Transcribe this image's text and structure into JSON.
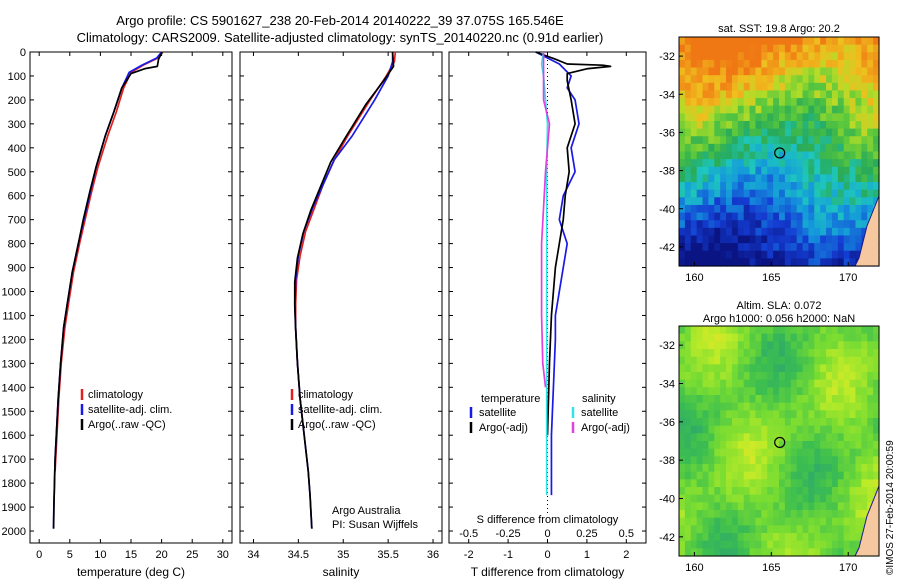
{
  "header": {
    "line1": "Argo profile: CS 5901627_238 20-Feb-2014 20140222_39 37.075S 165.546E",
    "line2": "Climatology: CARS2009. Satellite-adjusted climatology: synTS_20140220.nc (0.91d earlier)"
  },
  "colors": {
    "climatology": "#e32020",
    "satellite": "#1a1ae6",
    "argo": "#000000",
    "salinity_satellite": "#2ee6e6",
    "salinity_argo": "#e040e0"
  },
  "depth_axis": {
    "ylim": [
      0,
      2050
    ],
    "ticks": [
      0,
      100,
      200,
      300,
      400,
      500,
      600,
      700,
      800,
      900,
      1000,
      1100,
      1200,
      1300,
      1400,
      1500,
      1600,
      1700,
      1800,
      1900,
      2000
    ]
  },
  "chart_data": [
    {
      "id": "temperature",
      "type": "line",
      "xlabel": "temperature (deg C)",
      "xlim": [
        -1.5,
        31.5
      ],
      "ylim": [
        0,
        2050
      ],
      "xticks": [
        0,
        5,
        10,
        15,
        20,
        25,
        30
      ],
      "legend": [
        "climatology",
        "satellite-adj. clim.",
        "Argo(..raw -QC)"
      ],
      "legend_position": "lower-middle",
      "series": [
        {
          "name": "climatology",
          "color_key": "climatology",
          "x": [
            20.2,
            19.4,
            17.0,
            15.0,
            13.8,
            12.6,
            11.2,
            9.6,
            8.6,
            7.5,
            6.6,
            5.6,
            4.8,
            4.2,
            3.6,
            3.2,
            2.9,
            2.7,
            2.6
          ],
          "y": [
            0,
            25,
            55,
            85,
            150,
            250,
            350,
            480,
            580,
            700,
            800,
            920,
            1050,
            1150,
            1300,
            1450,
            1600,
            1700,
            1750
          ]
        },
        {
          "name": "satellite-adj. clim.",
          "color_key": "satellite",
          "x": [
            20.0,
            19.2,
            16.8,
            14.7,
            13.5,
            12.2,
            10.8,
            9.3,
            8.4,
            7.3,
            6.4,
            5.4,
            4.6,
            4.0,
            3.5,
            3.1,
            2.8,
            2.6,
            2.5,
            2.4,
            2.35
          ],
          "y": [
            0,
            25,
            55,
            85,
            150,
            250,
            350,
            480,
            580,
            700,
            800,
            920,
            1050,
            1150,
            1300,
            1450,
            1600,
            1700,
            1800,
            1900,
            1990
          ]
        },
        {
          "name": "Argo(..raw -QC)",
          "color_key": "argo",
          "x": [
            20.1,
            19.5,
            19.3,
            17.2,
            15.0,
            13.5,
            12.2,
            10.8,
            9.3,
            8.3,
            7.2,
            6.4,
            5.4,
            4.6,
            4.0,
            3.5,
            3.1,
            2.8,
            2.6,
            2.5,
            2.4,
            2.35
          ],
          "y": [
            0,
            30,
            60,
            70,
            90,
            150,
            250,
            350,
            480,
            580,
            700,
            800,
            920,
            1050,
            1150,
            1300,
            1450,
            1600,
            1700,
            1800,
            1900,
            1990
          ]
        }
      ]
    },
    {
      "id": "salinity",
      "type": "line",
      "xlabel": "salinity",
      "xlim": [
        33.85,
        36.1
      ],
      "ylim": [
        0,
        2050
      ],
      "xticks": [
        34,
        34.5,
        35,
        35.5,
        36
      ],
      "xtick_labels": [
        "34",
        "34.5",
        "35",
        "35.5",
        "36"
      ],
      "legend": [
        "climatology",
        "satellite-adj. clim.",
        "Argo(..raw -QC)"
      ],
      "legend_position": "lower-middle",
      "annotation": [
        "Argo Australia",
        "PI: Susan Wijffels"
      ],
      "series": [
        {
          "name": "climatology",
          "color_key": "climatology",
          "x": [
            35.58,
            35.57,
            35.48,
            35.3,
            35.05,
            34.9,
            34.78,
            34.68,
            34.58,
            34.52,
            34.48,
            34.47,
            34.47,
            34.49,
            34.52,
            34.55
          ],
          "y": [
            0,
            40,
            100,
            200,
            350,
            450,
            550,
            650,
            750,
            850,
            950,
            1050,
            1150,
            1300,
            1450,
            1550
          ]
        },
        {
          "name": "satellite-adj. clim.",
          "color_key": "satellite",
          "x": [
            35.55,
            35.55,
            35.5,
            35.35,
            35.1,
            34.9,
            34.78,
            34.66,
            34.56,
            34.5,
            34.47,
            34.46,
            34.47,
            34.49,
            34.52,
            34.55,
            34.58,
            34.61,
            34.63,
            34.65
          ],
          "y": [
            0,
            40,
            100,
            200,
            350,
            450,
            550,
            650,
            750,
            850,
            950,
            1050,
            1150,
            1300,
            1450,
            1550,
            1650,
            1750,
            1850,
            1990
          ]
        },
        {
          "name": "Argo(..raw -QC)",
          "color_key": "argo",
          "x": [
            35.55,
            35.56,
            35.45,
            35.25,
            35.02,
            34.86,
            34.75,
            34.64,
            34.55,
            34.49,
            34.46,
            34.46,
            34.47,
            34.49,
            34.52,
            34.55,
            34.58,
            34.61,
            34.63,
            34.65
          ],
          "y": [
            0,
            60,
            120,
            220,
            360,
            460,
            560,
            660,
            760,
            860,
            960,
            1060,
            1160,
            1300,
            1450,
            1550,
            1650,
            1750,
            1850,
            1990
          ]
        }
      ]
    },
    {
      "id": "difference",
      "type": "line",
      "xlabel": "T difference from climatology",
      "xlabel_top": "S difference from climatology",
      "xlim": [
        -2.5,
        2.5
      ],
      "ylim": [
        0,
        2050
      ],
      "xticks": [
        -2,
        -1,
        0,
        1,
        2
      ],
      "top_ticks": [
        -0.5,
        -0.25,
        0,
        0.25,
        0.5
      ],
      "top_tick_labels": [
        "-0.5",
        "-0.25",
        "0",
        "0.25",
        "0.5"
      ],
      "legend_temperature": {
        "title": "temperature",
        "items": [
          "satellite",
          "Argo(-adj)"
        ]
      },
      "legend_salinity": {
        "title": "salinity",
        "items": [
          "satellite",
          "Argo(-adj)"
        ]
      },
      "zero_line": "dotted",
      "series": [
        {
          "name": "temperature satellite",
          "color_key": "satellite",
          "x": [
            -0.3,
            0.3,
            0.6,
            0.5,
            0.7,
            0.8,
            0.6,
            0.7,
            0.4,
            0.3,
            0.5,
            0.4,
            0.3,
            0.2,
            0.2,
            0.15,
            0.1,
            0.1,
            0.1
          ],
          "y": [
            0,
            50,
            100,
            150,
            200,
            300,
            400,
            500,
            600,
            700,
            800,
            900,
            1000,
            1100,
            1200,
            1400,
            1600,
            1800,
            1850
          ]
        },
        {
          "name": "temperature Argo(-adj)",
          "color_key": "argo",
          "x": [
            -0.3,
            0.2,
            0.5,
            1.4,
            1.6,
            1.0,
            0.5,
            0.5,
            0.6,
            0.7,
            0.5,
            0.55,
            0.45,
            0.4,
            0.3,
            0.2,
            0.15,
            0.1,
            0.05,
            0.0
          ],
          "y": [
            0,
            30,
            50,
            55,
            60,
            70,
            90,
            120,
            200,
            300,
            400,
            500,
            600,
            700,
            800,
            900,
            1000,
            1100,
            1300,
            1600
          ]
        },
        {
          "name": "salinity satellite",
          "color_key": "salinity_satellite",
          "x": [
            -0.1,
            -0.15,
            -0.1,
            -0.05,
            0.0,
            -0.02,
            -0.02,
            -0.02,
            -0.02,
            -0.02
          ],
          "y": [
            0,
            50,
            100,
            200,
            300,
            500,
            800,
            1100,
            1500,
            1850
          ]
        },
        {
          "name": "salinity Argo(-adj)",
          "color_key": "salinity_argo",
          "x": [
            -0.1,
            -0.1,
            -0.1,
            0.05,
            0.0,
            -0.05,
            -0.15,
            -0.15,
            -0.12,
            -0.05
          ],
          "y": [
            0,
            100,
            200,
            300,
            400,
            500,
            800,
            1100,
            1300,
            1400
          ]
        }
      ]
    },
    {
      "id": "sst_map",
      "type": "heatmap",
      "title": "sat. SST: 19.8 Argo: 20.2",
      "xlim": [
        159,
        172
      ],
      "ylim": [
        -43,
        -31
      ],
      "xticks": [
        160,
        165,
        170
      ],
      "yticks": [
        -32,
        -34,
        -36,
        -38,
        -40,
        -42
      ],
      "marker": {
        "lon": 165.546,
        "lat": -37.075
      },
      "value_range": [
        14,
        23
      ]
    },
    {
      "id": "sla_map",
      "type": "heatmap",
      "title": "Altim. SLA: 0.072",
      "subtitle": "Argo h1000: 0.056 h2000: NaN",
      "xlim": [
        159,
        172
      ],
      "ylim": [
        -43,
        -31
      ],
      "xticks": [
        160,
        165,
        170
      ],
      "yticks": [
        -32,
        -34,
        -36,
        -38,
        -40,
        -42
      ],
      "marker": {
        "lon": 165.546,
        "lat": -37.075
      }
    }
  ],
  "footer": {
    "stamp": "©IMOS 27-Feb-2014 20:00:59"
  }
}
